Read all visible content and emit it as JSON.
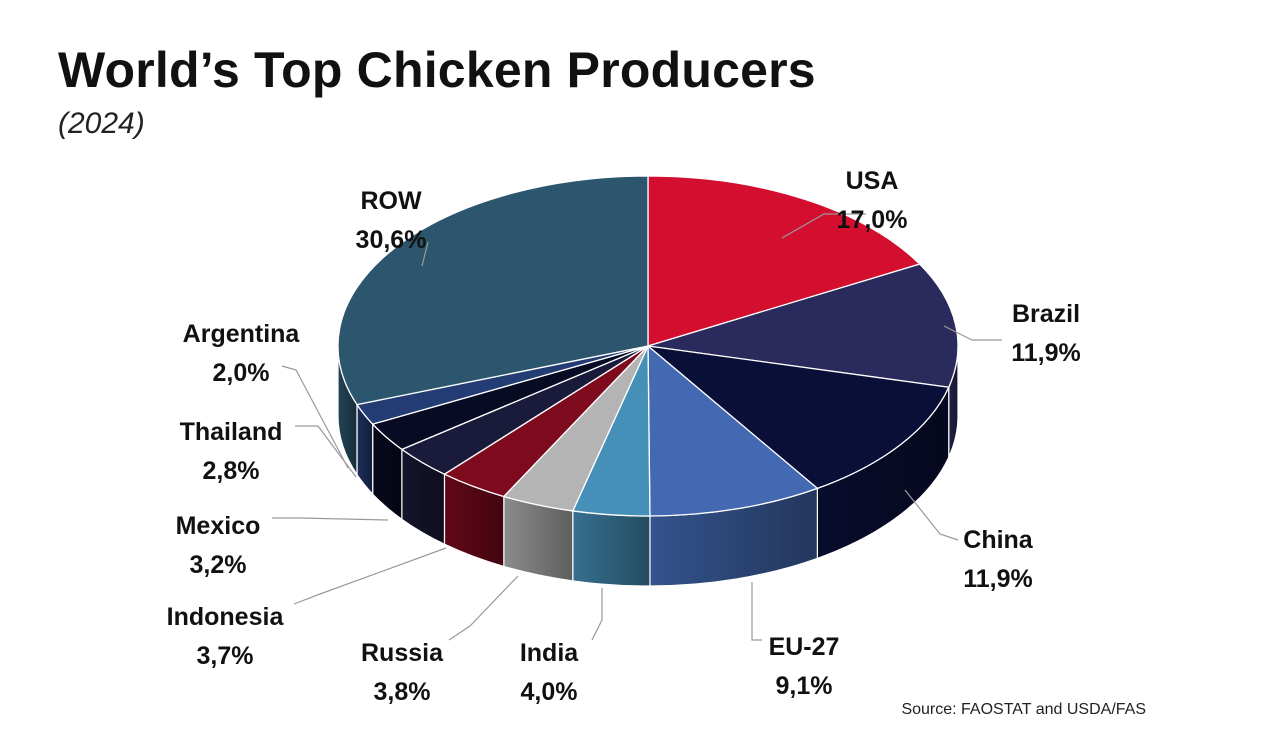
{
  "chart_data": {
    "type": "pie",
    "title": "World’s Top Chicken Producers",
    "subtitle": "(2024)",
    "style": "3d",
    "legend": "none",
    "slices": [
      {
        "name": "USA",
        "label": "17,0%",
        "value": 17.0,
        "color": "#d30e2f"
      },
      {
        "name": "Brazil",
        "label": "11,9%",
        "value": 11.9,
        "color": "#2b2a5c"
      },
      {
        "name": "China",
        "label": "11,9%",
        "value": 11.9,
        "color": "#0a0f38"
      },
      {
        "name": "EU-27",
        "label": "9,1%",
        "value": 9.1,
        "color": "#4369b3"
      },
      {
        "name": "India",
        "label": "4,0%",
        "value": 4.0,
        "color": "#4590b8"
      },
      {
        "name": "Russia",
        "label": "3,8%",
        "value": 3.8,
        "color": "#b4b4b4"
      },
      {
        "name": "Indonesia",
        "label": "3,7%",
        "value": 3.7,
        "color": "#7e0a1e"
      },
      {
        "name": "Mexico",
        "label": "3,2%",
        "value": 3.2,
        "color": "#1a1a3a"
      },
      {
        "name": "Thailand",
        "label": "2,8%",
        "value": 2.8,
        "color": "#080b24"
      },
      {
        "name": "Argentina",
        "label": "2,0%",
        "value": 2.0,
        "color": "#233c73"
      },
      {
        "name": "ROW",
        "label": "30,6%",
        "value": 30.6,
        "color": "#2c566e"
      }
    ]
  },
  "source": "Source: FAOSTAT and USDA/FAS"
}
